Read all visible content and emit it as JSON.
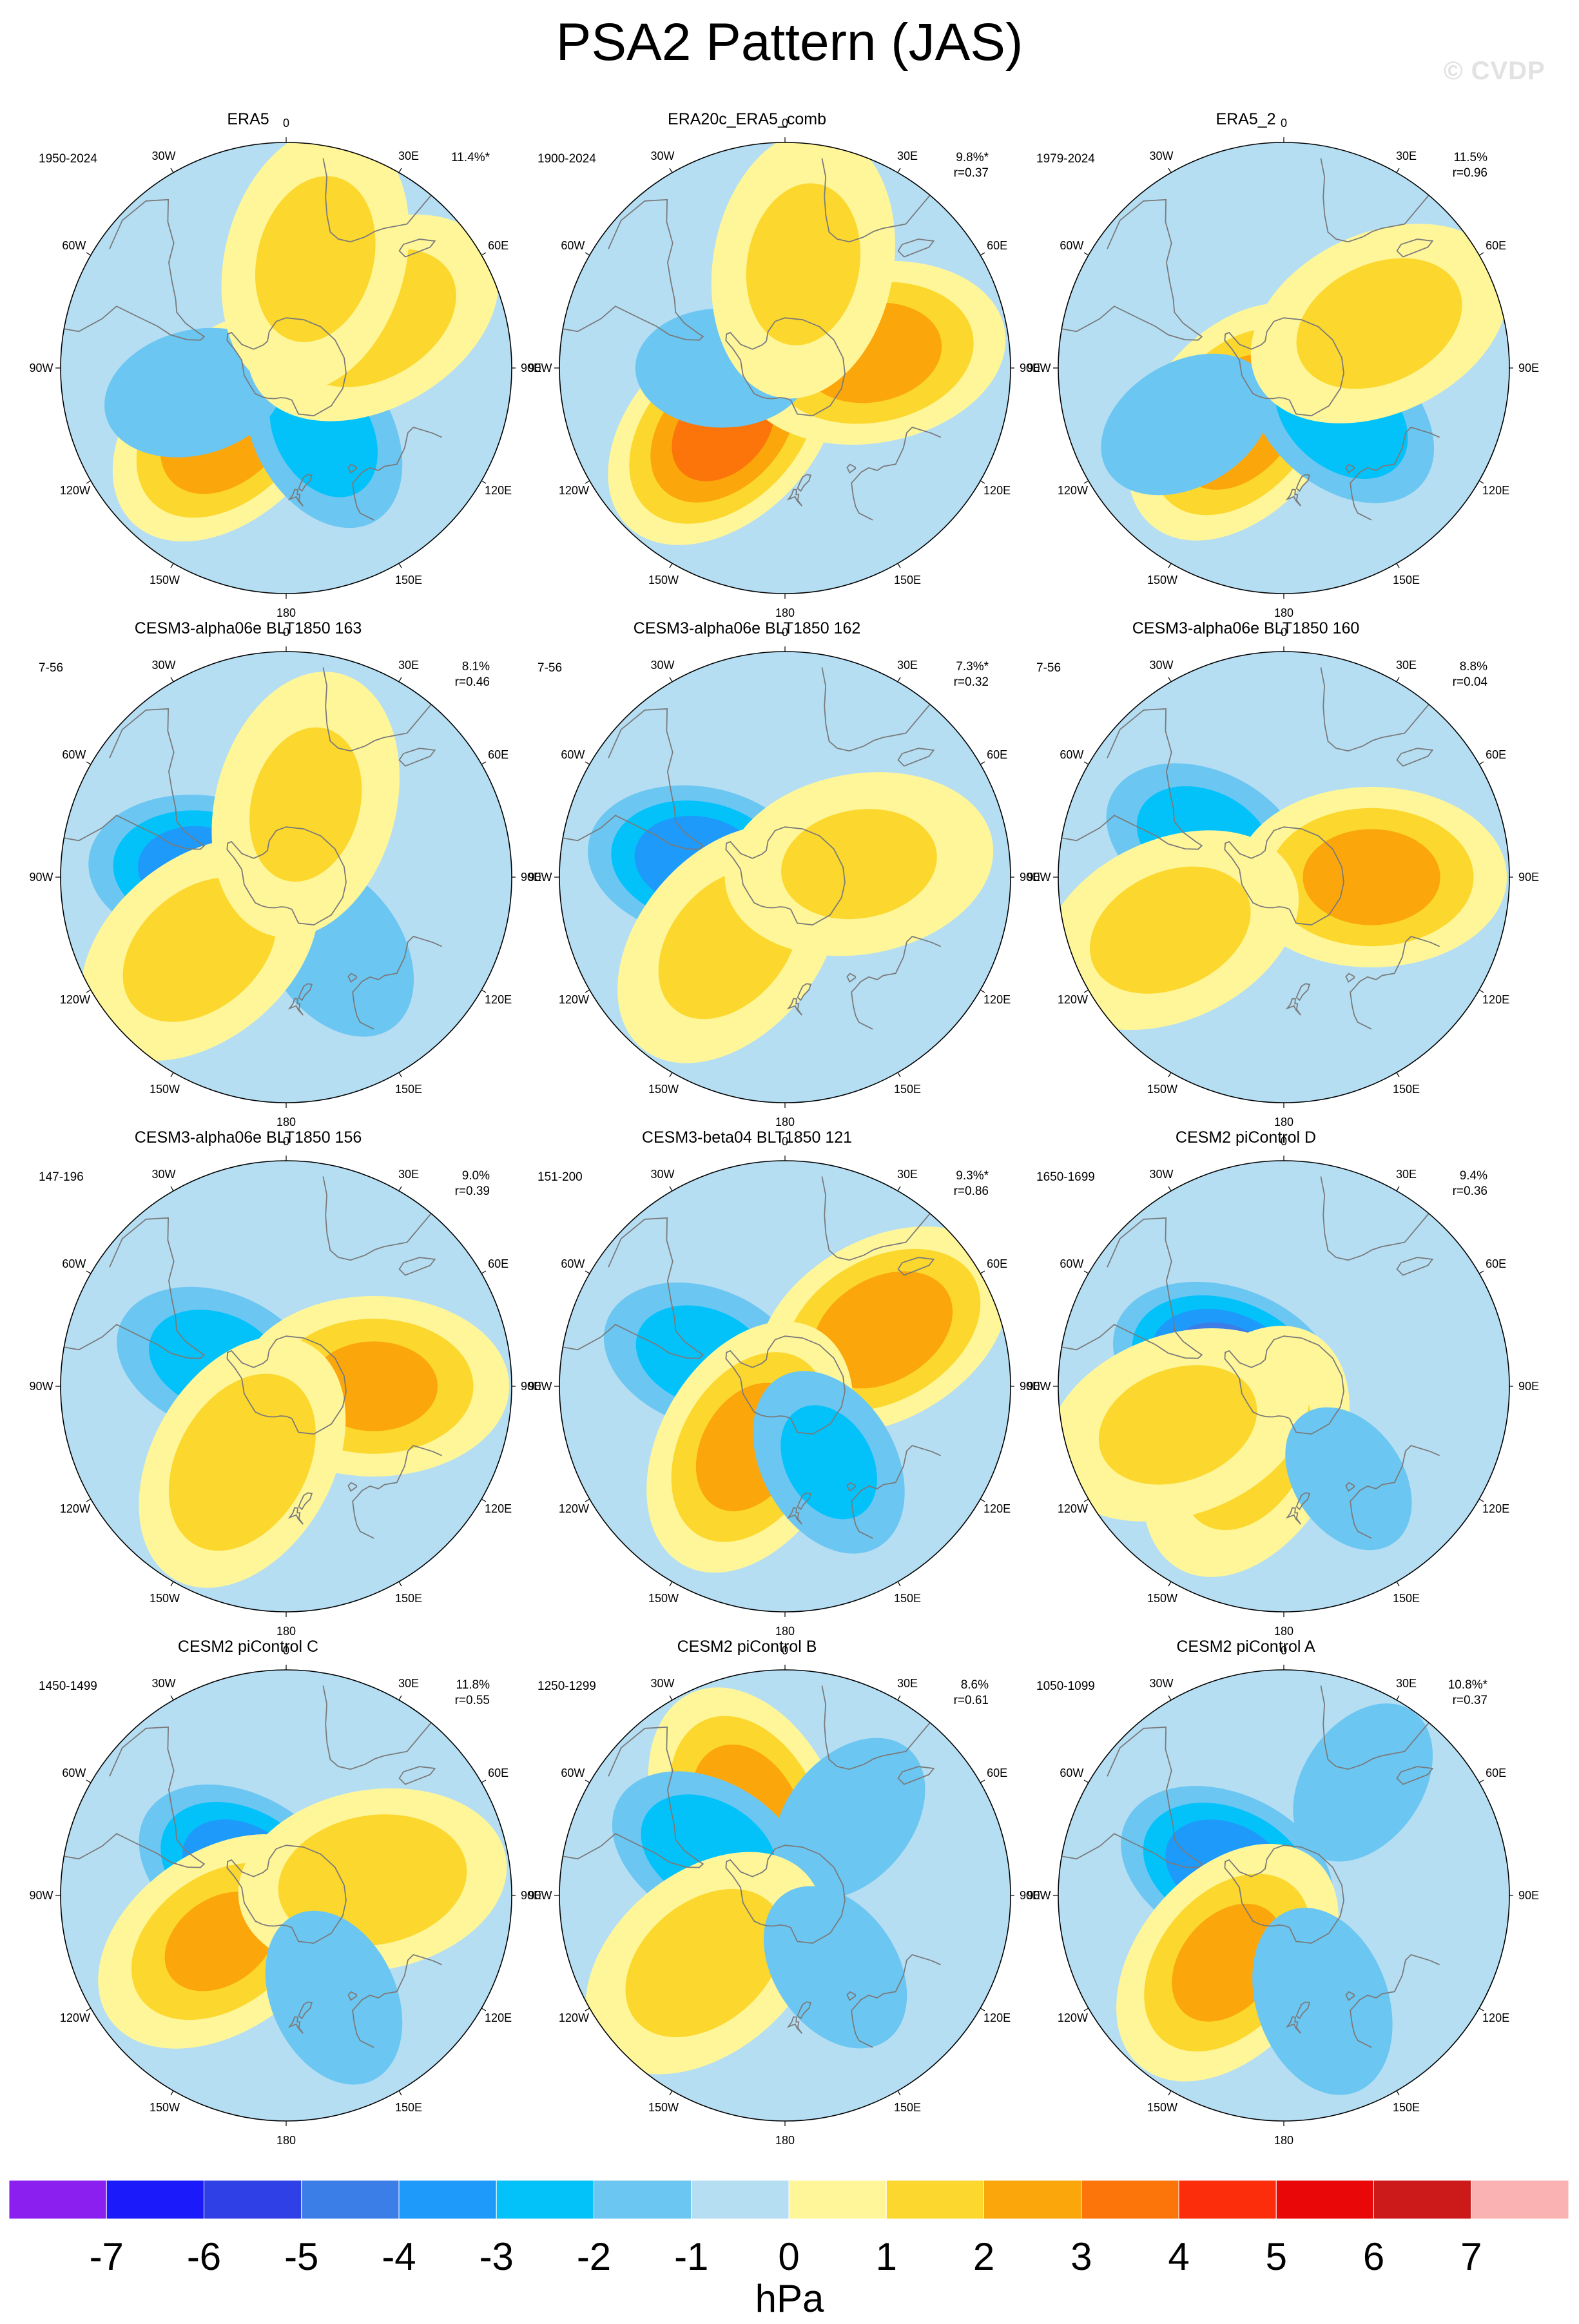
{
  "title": "PSA2 Pattern (JAS)",
  "watermark": "© CVDP",
  "units": "hPa",
  "lon_labels": [
    "0",
    "30E",
    "60E",
    "90E",
    "120E",
    "150E",
    "180",
    "150W",
    "120W",
    "90W",
    "60W",
    "30W"
  ],
  "colorbar": {
    "colors": [
      "#8a1fef",
      "#1a1afa",
      "#2e40e6",
      "#3b7ee8",
      "#1e9afa",
      "#03c2fa",
      "#6cc6f2",
      "#b5def3",
      "#fff69a",
      "#fcd72d",
      "#fba60b",
      "#fb750a",
      "#fb2d0a",
      "#ea0707",
      "#cc1a1a",
      "#fbb2b2"
    ],
    "ticks": [
      "-7",
      "-6",
      "-5",
      "-4",
      "-3",
      "-2",
      "-1",
      "0",
      "1",
      "2",
      "3",
      "4",
      "5",
      "6",
      "7"
    ]
  },
  "chart_data": [
    {
      "type": "heatmap",
      "title": "ERA5",
      "years": "1950-2024",
      "variance": "11.4%*",
      "r": "",
      "extrema": [
        {
          "lat": -57,
          "lon": -135,
          "value": 2.8
        },
        {
          "lat": -60,
          "lon": 150,
          "value": -2.3
        },
        {
          "lat": -52,
          "lon": -105,
          "value": -1.6
        },
        {
          "lat": -50,
          "lon": 60,
          "value": 1.5
        },
        {
          "lat": -45,
          "lon": 15,
          "value": 1.3
        }
      ]
    },
    {
      "type": "heatmap",
      "title": "ERA20c_ERA5_comb",
      "years": "1900-2024",
      "variance": "9.8%*",
      "r": "r=0.37",
      "extrema": [
        {
          "lat": -55,
          "lon": -135,
          "value": 3.2
        },
        {
          "lat": -55,
          "lon": 80,
          "value": 2.4
        },
        {
          "lat": -65,
          "lon": -90,
          "value": -1.4
        },
        {
          "lat": -48,
          "lon": 10,
          "value": 1.2
        }
      ]
    },
    {
      "type": "heatmap",
      "title": "ERA5_2",
      "years": "1979-2024",
      "variance": "11.5%",
      "r": "r=0.96",
      "extrema": [
        {
          "lat": -62,
          "lon": -140,
          "value": 2.7
        },
        {
          "lat": -60,
          "lon": 130,
          "value": -2.6
        },
        {
          "lat": -45,
          "lon": -120,
          "value": -1.6
        },
        {
          "lat": -48,
          "lon": 65,
          "value": 1.4
        }
      ]
    },
    {
      "type": "heatmap",
      "title": "CESM3-alpha06e BLT1850 163",
      "years": "7-56",
      "variance": "8.1%",
      "r": "r=0.46",
      "extrema": [
        {
          "lat": -55,
          "lon": -85,
          "value": -3.3
        },
        {
          "lat": -55,
          "lon": 145,
          "value": -1.9
        },
        {
          "lat": -45,
          "lon": -130,
          "value": 1.4
        },
        {
          "lat": -60,
          "lon": 15,
          "value": 1.1
        }
      ]
    },
    {
      "type": "heatmap",
      "title": "CESM3-alpha06e BLT1850 162",
      "years": "7-56",
      "variance": "7.3%*",
      "r": "r=0.32",
      "extrema": [
        {
          "lat": -55,
          "lon": -80,
          "value": -3.5
        },
        {
          "lat": -55,
          "lon": -140,
          "value": 1.3
        },
        {
          "lat": -60,
          "lon": 80,
          "value": 1.1
        }
      ]
    },
    {
      "type": "heatmap",
      "title": "CESM3-alpha06e BLT1850 160",
      "years": "7-56",
      "variance": "8.8%",
      "r": "r=0.04",
      "extrema": [
        {
          "lat": -55,
          "lon": -65,
          "value": -2.4
        },
        {
          "lat": -55,
          "lon": 90,
          "value": 2.3
        },
        {
          "lat": -40,
          "lon": -115,
          "value": 1.3
        }
      ]
    },
    {
      "type": "heatmap",
      "title": "CESM3-alpha06e BLT1850 156",
      "years": "147-196",
      "variance": "9.0%",
      "r": "r=0.39",
      "extrema": [
        {
          "lat": -60,
          "lon": -70,
          "value": -2.3
        },
        {
          "lat": -55,
          "lon": 90,
          "value": 2.1
        },
        {
          "lat": -55,
          "lon": -150,
          "value": 1.8
        }
      ]
    },
    {
      "type": "heatmap",
      "title": "CESM3-beta04 BLT1850 121",
      "years": "151-200",
      "variance": "9.3%*",
      "r": "r=0.86",
      "extrema": [
        {
          "lat": -55,
          "lon": -70,
          "value": -2.3
        },
        {
          "lat": -45,
          "lon": 60,
          "value": 2.6
        },
        {
          "lat": -62,
          "lon": -150,
          "value": 2.3
        },
        {
          "lat": -55,
          "lon": 150,
          "value": -2.0
        }
      ]
    },
    {
      "type": "heatmap",
      "title": "CESM2 piControl D",
      "years": "1650-1699",
      "variance": "9.4%",
      "r": "r=0.36",
      "extrema": [
        {
          "lat": -65,
          "lon": -70,
          "value": -4.3
        },
        {
          "lat": -60,
          "lon": -150,
          "value": 1.3
        },
        {
          "lat": -45,
          "lon": -110,
          "value": 1.2
        },
        {
          "lat": -45,
          "lon": 145,
          "value": -1.1
        }
      ]
    },
    {
      "type": "heatmap",
      "title": "CESM2 piControl C",
      "years": "1450-1499",
      "variance": "11.8%",
      "r": "r=0.55",
      "extrema": [
        {
          "lat": -70,
          "lon": -60,
          "value": -3.5
        },
        {
          "lat": -58,
          "lon": -125,
          "value": 2.0
        },
        {
          "lat": -55,
          "lon": 80,
          "value": 1.8
        },
        {
          "lat": -45,
          "lon": 155,
          "value": -1.6
        }
      ]
    },
    {
      "type": "heatmap",
      "title": "CESM2 piControl B",
      "years": "1250-1299",
      "variance": "8.6%",
      "r": "r=0.61",
      "extrema": [
        {
          "lat": -55,
          "lon": -25,
          "value": 2.6
        },
        {
          "lat": -55,
          "lon": -60,
          "value": -2.5
        },
        {
          "lat": -50,
          "lon": 40,
          "value": -1.6
        },
        {
          "lat": -48,
          "lon": -130,
          "value": 1.5
        },
        {
          "lat": -55,
          "lon": 145,
          "value": -1.5
        }
      ]
    },
    {
      "type": "heatmap",
      "title": "CESM2 piControl A",
      "years": "1050-1099",
      "variance": "10.8%*",
      "r": "r=0.37",
      "extrema": [
        {
          "lat": -65,
          "lon": -65,
          "value": -3.5
        },
        {
          "lat": -55,
          "lon": -140,
          "value": 2.2
        },
        {
          "lat": -45,
          "lon": 160,
          "value": -1.9
        },
        {
          "lat": -35,
          "lon": 35,
          "value": -1.4
        }
      ]
    }
  ]
}
